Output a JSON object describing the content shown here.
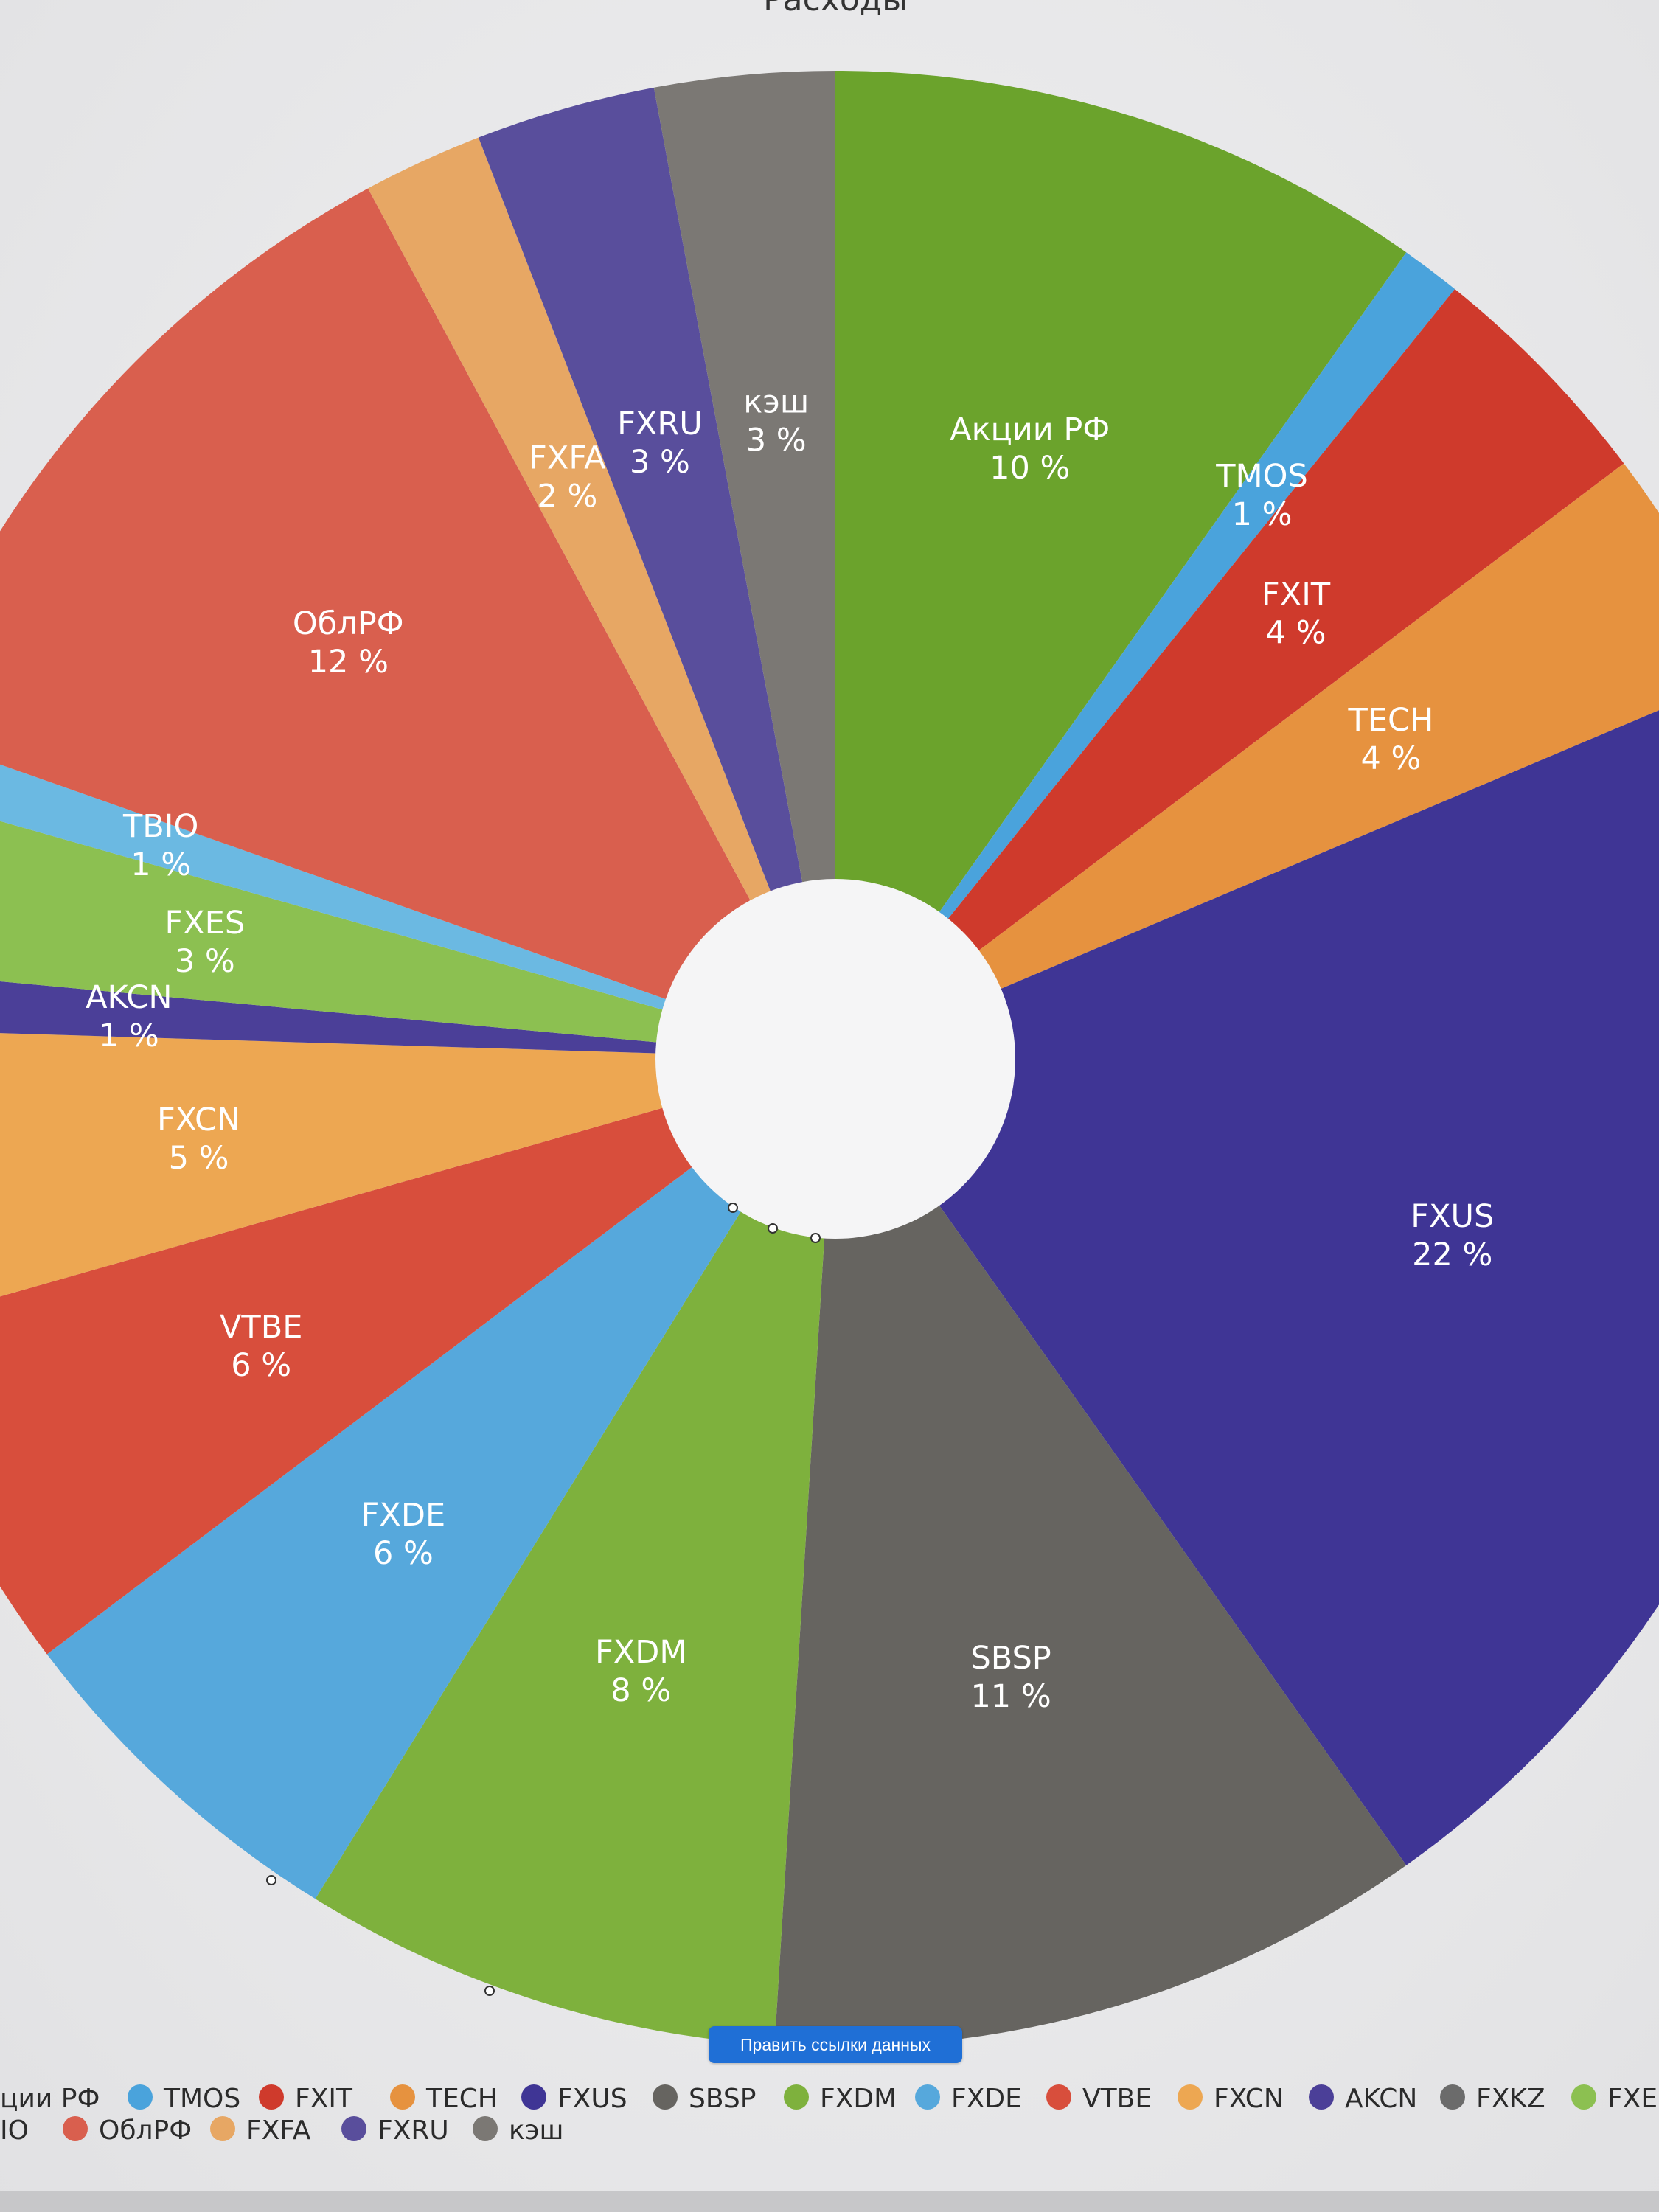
{
  "chart_data": {
    "type": "pie",
    "donut": true,
    "title": "Расходы",
    "legend_position": "bottom",
    "slices": [
      {
        "label": "Акции РФ",
        "value": 10,
        "value_label": "10 %",
        "color": "#6ba32c"
      },
      {
        "label": "TMOS",
        "value": 1,
        "value_label": "1 %",
        "color": "#4aa3dc"
      },
      {
        "label": "FXIT",
        "value": 4,
        "value_label": "4 %",
        "color": "#cf3a2c"
      },
      {
        "label": "TECH",
        "value": 4,
        "value_label": "4 %",
        "color": "#e6923f"
      },
      {
        "label": "FXUS",
        "value": 22,
        "value_label": "22 %",
        "color": "#3f3595"
      },
      {
        "label": "SBSP",
        "value": 11,
        "value_label": "11 %",
        "color": "#666460"
      },
      {
        "label": "FXDM",
        "value": 8,
        "value_label": "8 %",
        "color": "#7eb13d"
      },
      {
        "label": "FXDE",
        "value": 6,
        "value_label": "6 %",
        "color": "#56a8dc"
      },
      {
        "label": "VTBE",
        "value": 6,
        "value_label": "6 %",
        "color": "#d84e3c"
      },
      {
        "label": "FXCN",
        "value": 5,
        "value_label": "5 %",
        "color": "#eda752"
      },
      {
        "label": "AKCN",
        "value": 1,
        "value_label": "1 %",
        "color": "#4b3f98"
      },
      {
        "label": "FXKZ",
        "value": 0,
        "value_label": "",
        "color": "#6b6b6b"
      },
      {
        "label": "FXES",
        "value": 3,
        "value_label": "3 %",
        "color": "#8cc051"
      },
      {
        "label": "TBIO",
        "value": 1,
        "value_label": "1 %",
        "color": "#6bb9e2"
      },
      {
        "label": "ОблРФ",
        "value": 12,
        "value_label": "12 %",
        "color": "#d95f4e"
      },
      {
        "label": "FXFA",
        "value": 2,
        "value_label": "2 %",
        "color": "#e7a764"
      },
      {
        "label": "FXRU",
        "value": 3,
        "value_label": "3 %",
        "color": "#594e9c"
      },
      {
        "label": "кэш",
        "value": 3,
        "value_label": "3 %",
        "color": "#7b7874"
      }
    ],
    "legend_rows": [
      [
        "Акции РФ",
        "TMOS",
        "FXIT",
        "TECH",
        "FXUS",
        "SBSP",
        "FXDM",
        "FXDE",
        "VTBE",
        "FXCN",
        "AKCN",
        "FXKZ",
        "FXES"
      ],
      [
        "TBIO",
        "ОблРФ",
        "FXFA",
        "FXRU",
        "кэш"
      ]
    ],
    "legend_display": {
      "Акции РФ": "ции РФ",
      "TBIO": "IO"
    }
  },
  "edit_button_label": "Править ссылки данных"
}
